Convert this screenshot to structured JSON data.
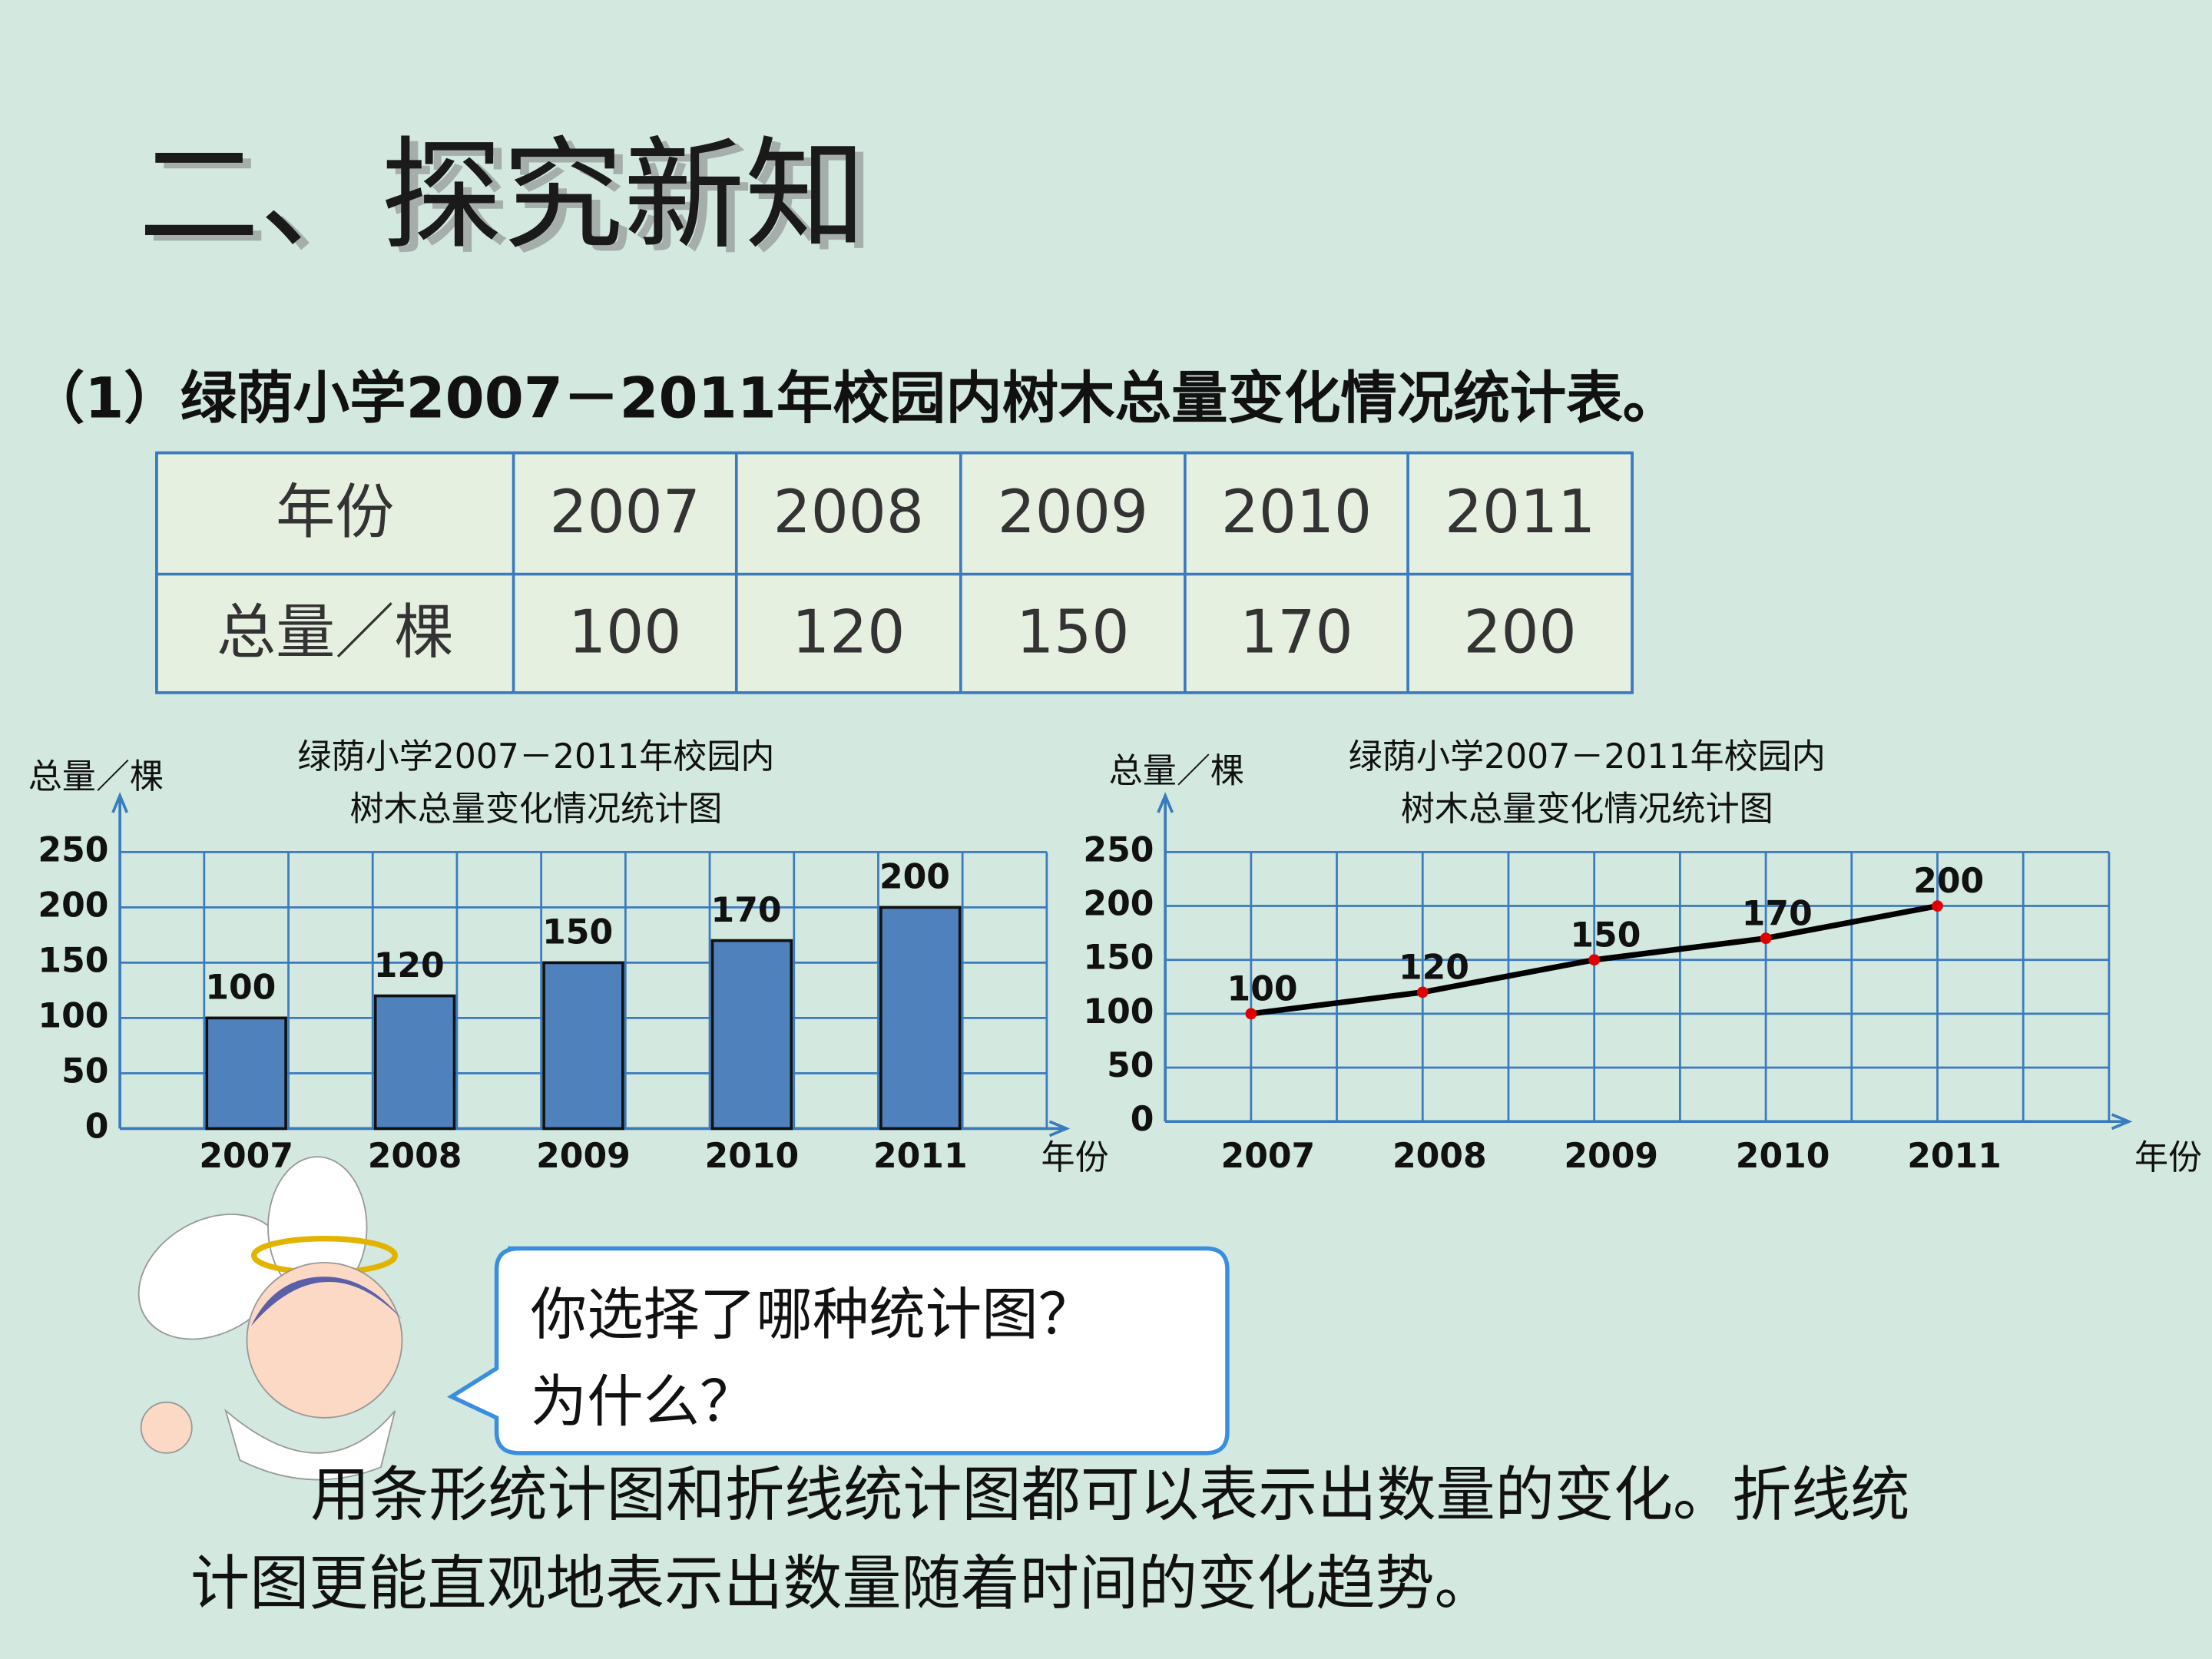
{
  "header": {
    "title": "二、探究新知"
  },
  "question": "（1）绿荫小学2007－2011年校园内树木总量变化情况统计表。",
  "table": {
    "rows": [
      [
        "年份",
        "2007",
        "2008",
        "2009",
        "2010",
        "2011"
      ],
      [
        "总量／棵",
        100,
        120,
        150,
        170,
        200
      ]
    ]
  },
  "chart_data": [
    {
      "type": "bar",
      "title": [
        "绿荫小学2007－2011年校园内",
        "树木总量变化情况统计图"
      ],
      "y_label": "总量／棵",
      "x_label": "年份",
      "categories": [
        "2007",
        "2008",
        "2009",
        "2010",
        "2011"
      ],
      "values": [
        100,
        120,
        150,
        170,
        200
      ],
      "color": "#4f81bd",
      "ylim": [
        0,
        250
      ],
      "yticks": [
        0,
        50,
        100,
        150,
        200,
        250
      ],
      "grid": true
    },
    {
      "type": "line",
      "title": [
        "绿荫小学2007－2011年校园内",
        "树木总量变化情况统计图"
      ],
      "y_label": "总量／棵",
      "x_label": "年份",
      "categories": [
        "2007",
        "2008",
        "2009",
        "2010",
        "2011"
      ],
      "values": [
        100,
        120,
        150,
        170,
        200
      ],
      "color": "#000000",
      "marker_color": "#e00000",
      "ylim": [
        0,
        250
      ],
      "yticks": [
        0,
        50,
        100,
        150,
        200,
        250
      ],
      "grid": true
    }
  ],
  "speech": [
    "你选择了哪种统计图？",
    "为什么？"
  ],
  "conclusion": [
    "用条形统计图和折线统计图都可以表示出数量的变化。折线统",
    "计图更能直观地表示出数量随着时间的变化趋势。"
  ]
}
